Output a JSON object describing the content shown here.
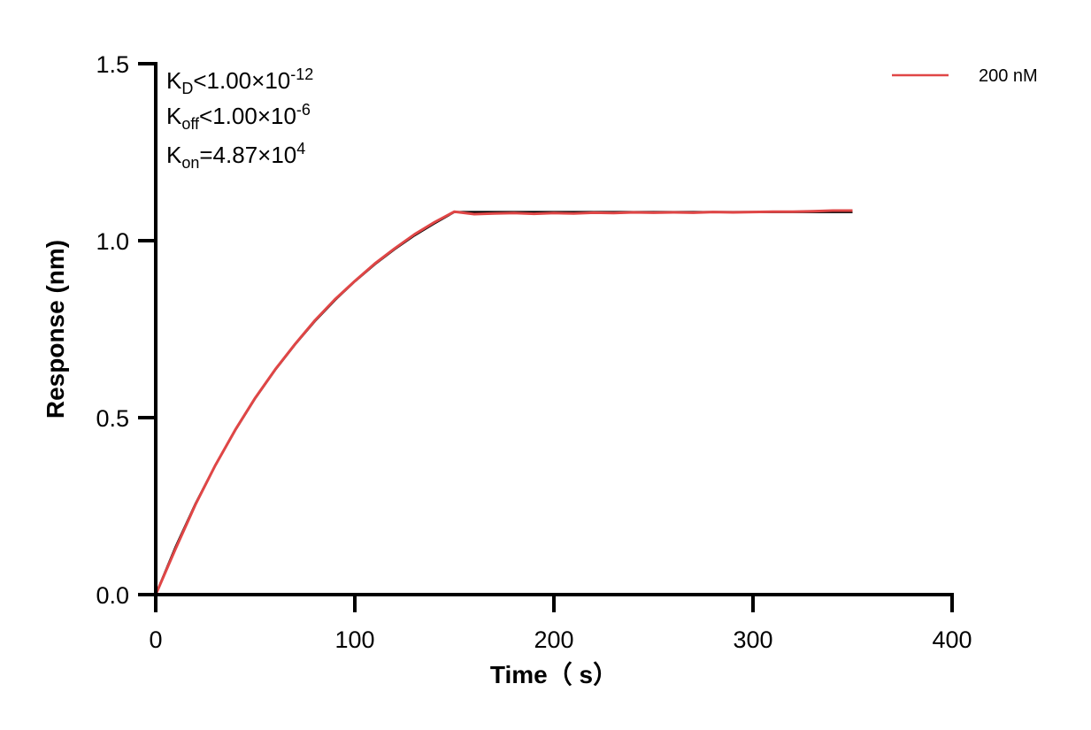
{
  "chart_data": {
    "type": "line",
    "xlabel": "Time（ s）",
    "ylabel": "Response (nm)",
    "xlim": [
      0,
      400
    ],
    "ylim": [
      0,
      1.5
    ],
    "xticks": [
      "0",
      "100",
      "200",
      "300",
      "400"
    ],
    "yticks": [
      "0.0",
      "0.5",
      "1.0",
      "1.5"
    ],
    "grid": false,
    "legend_position": "top-right",
    "annotations": {
      "kd": {
        "k": "K",
        "sub": "D",
        "rel": "<1.00×10",
        "exp": "-12"
      },
      "koff": {
        "k": "K",
        "sub": "off",
        "rel": "<1.00×10",
        "exp": "-6"
      },
      "kon": {
        "k": "K",
        "sub": "on",
        "rel": "=4.87×10",
        "exp": "4"
      }
    },
    "x": [
      0,
      10,
      20,
      30,
      40,
      50,
      60,
      70,
      80,
      90,
      100,
      110,
      120,
      130,
      140,
      150,
      160,
      170,
      180,
      190,
      200,
      210,
      220,
      230,
      240,
      250,
      260,
      270,
      280,
      290,
      300,
      310,
      320,
      330,
      340,
      350
    ],
    "series": [
      {
        "role": "fit",
        "color": "#000000",
        "values": [
          0,
          0.135,
          0.257,
          0.366,
          0.465,
          0.555,
          0.635,
          0.707,
          0.773,
          0.832,
          0.885,
          0.933,
          0.976,
          1.015,
          1.049,
          1.081,
          1.081,
          1.081,
          1.081,
          1.081,
          1.081,
          1.081,
          1.081,
          1.081,
          1.081,
          1.081,
          1.081,
          1.081,
          1.081,
          1.081,
          1.081,
          1.081,
          1.081,
          1.081,
          1.081,
          1.081
        ]
      },
      {
        "name": "200 nM",
        "color": "#e04646",
        "values": [
          0,
          0.13,
          0.255,
          0.366,
          0.466,
          0.556,
          0.636,
          0.708,
          0.775,
          0.834,
          0.886,
          0.935,
          0.978,
          1.018,
          1.052,
          1.082,
          1.075,
          1.077,
          1.078,
          1.076,
          1.078,
          1.077,
          1.079,
          1.078,
          1.08,
          1.079,
          1.08,
          1.079,
          1.081,
          1.08,
          1.081,
          1.082,
          1.082,
          1.083,
          1.085,
          1.085
        ]
      }
    ]
  }
}
